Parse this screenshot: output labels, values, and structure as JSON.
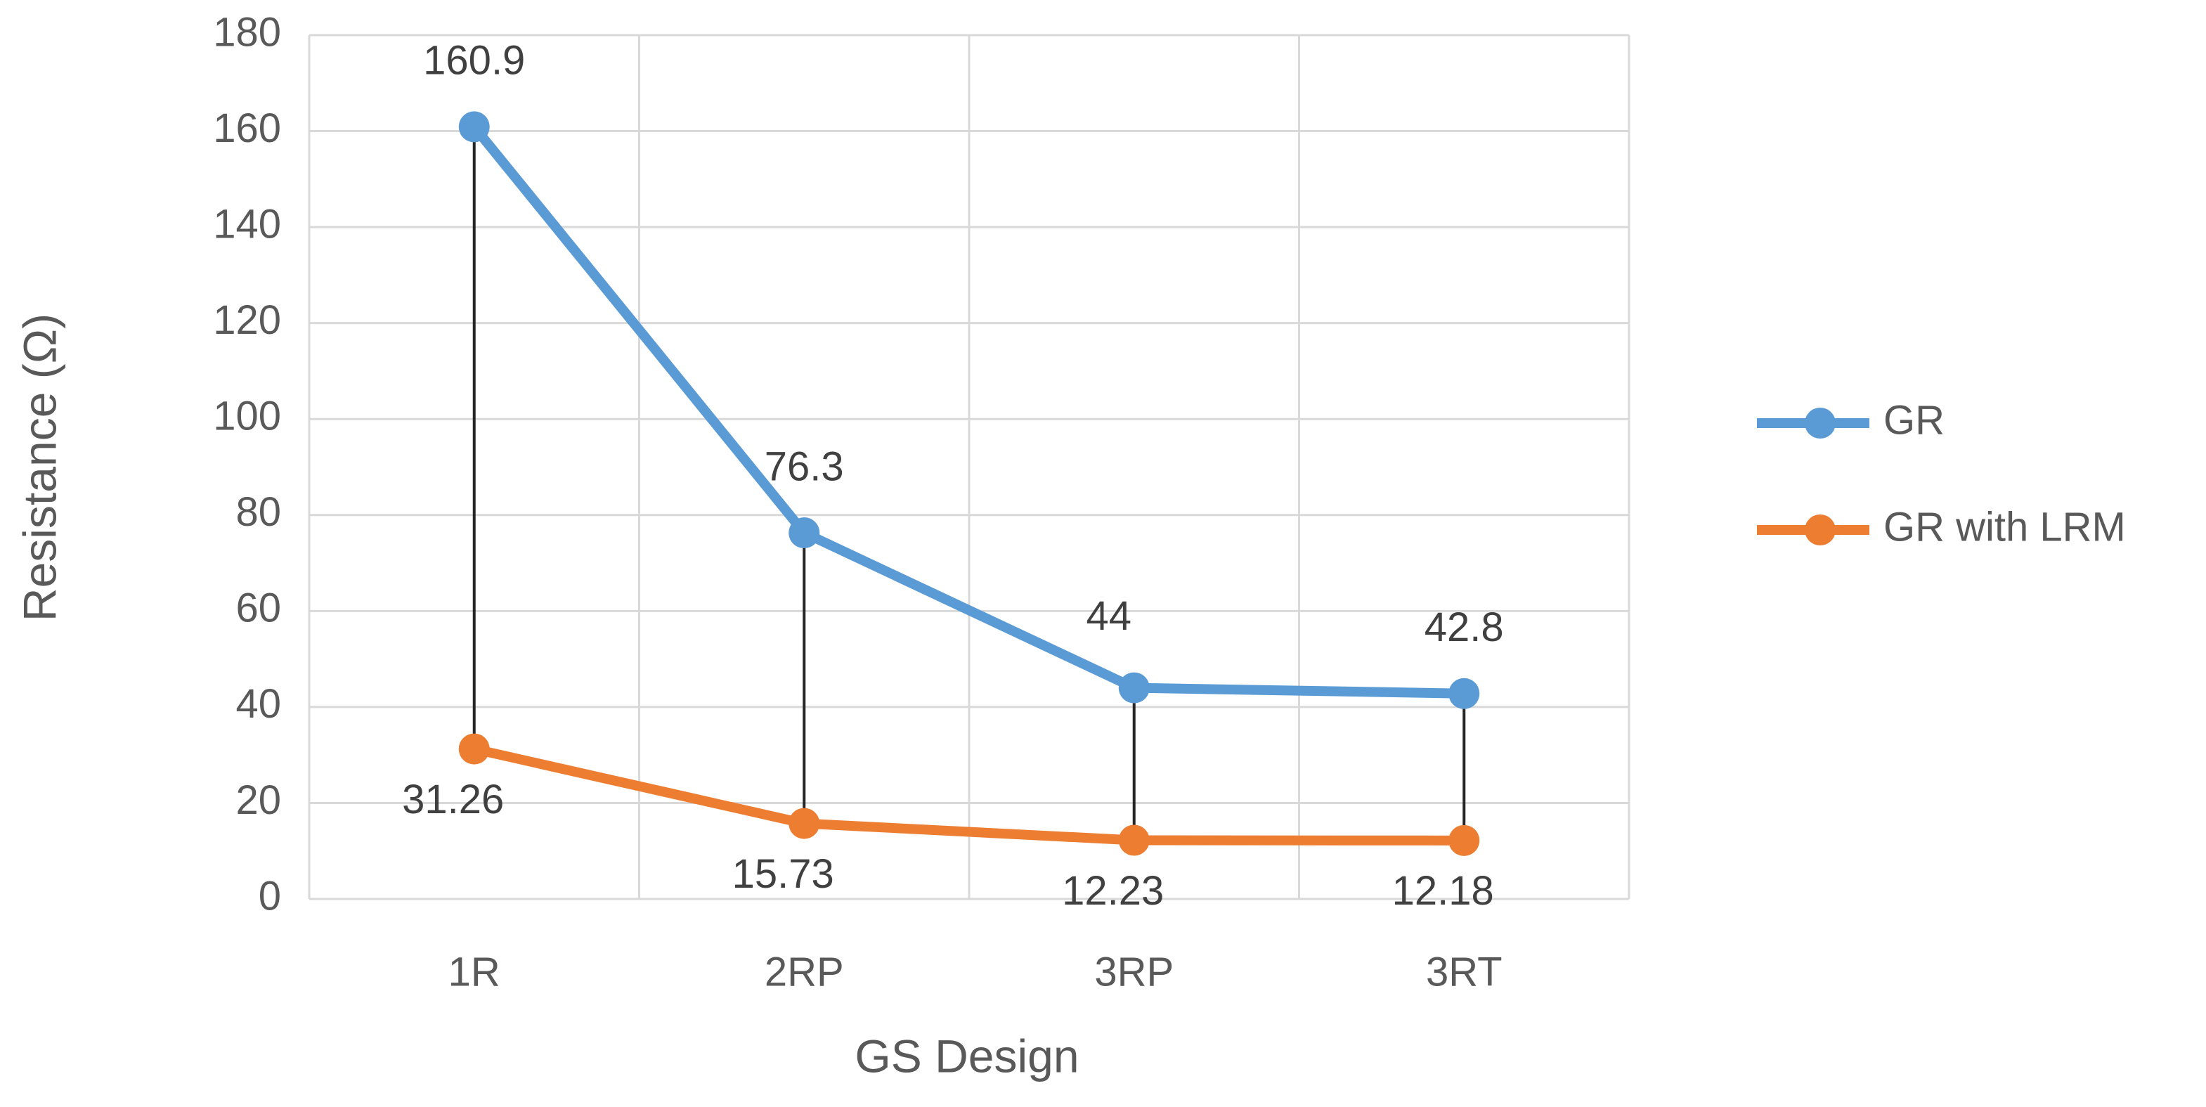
{
  "chart_data": {
    "type": "line",
    "x_label": "GS Design",
    "y_label": "Resistance (Ω)",
    "categories": [
      "1R",
      "2RP",
      "3RP",
      "3RT"
    ],
    "series": [
      {
        "name": "GR",
        "color": "#5b9bd5",
        "values": [
          160.9,
          76.3,
          44,
          42.8
        ]
      },
      {
        "name": "GR with LRM",
        "color": "#ed7d31",
        "values": [
          31.26,
          15.73,
          12.23,
          12.18
        ]
      }
    ],
    "ylim": [
      0,
      180
    ],
    "yticks": [
      0,
      20,
      40,
      60,
      80,
      100,
      120,
      140,
      160,
      180
    ],
    "grid": true,
    "drop_lines": true,
    "legend": "right"
  }
}
